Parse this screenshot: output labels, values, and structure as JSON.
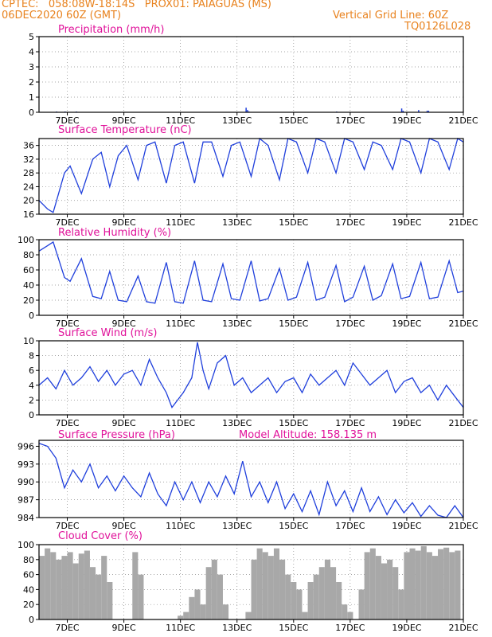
{
  "header": {
    "line1_left": "CPTEC:   058:08W-18:14S   PROX01: PAIAGUAS (MS)",
    "line2_left": "06DEC2020 60Z (GMT)",
    "line2_right": "Vertical Grid Line: 60Z",
    "line3_right": "TQ0126L028"
  },
  "colors": {
    "header": "#e8821e",
    "title": "#e0129a",
    "line": "#1f3fdc",
    "cloud": "#a8a8a8"
  },
  "chart_data": [
    {
      "type": "bar",
      "title": "Precipitation (mm/h)",
      "xlabels": [
        "7DEC",
        "9DEC",
        "11DEC",
        "13DEC",
        "15DEC",
        "17DEC",
        "19DEC",
        "21DEC"
      ],
      "ylim": [
        0,
        5
      ],
      "yticks": [
        0,
        1,
        2,
        3,
        4,
        5
      ],
      "x_days": [
        6.6,
        6.9,
        7.3,
        13.3,
        13.35,
        13.4,
        16.5,
        18.8,
        18.85,
        19.4,
        19.7,
        19.75
      ],
      "values": [
        0.05,
        0.05,
        0.05,
        0.3,
        0.15,
        0.05,
        0.05,
        0.25,
        0.1,
        0.15,
        0.1,
        0.1
      ]
    },
    {
      "type": "line",
      "title": "Surface Temperature (nC)",
      "xlabels": [
        "7DEC",
        "9DEC",
        "11DEC",
        "13DEC",
        "15DEC",
        "17DEC",
        "19DEC",
        "21DEC"
      ],
      "ylim": [
        16,
        38
      ],
      "yticks": [
        16,
        20,
        24,
        28,
        32,
        36
      ],
      "x_days": [
        6.0,
        6.3,
        6.5,
        6.9,
        7.1,
        7.5,
        7.9,
        8.2,
        8.5,
        8.8,
        9.1,
        9.5,
        9.8,
        10.1,
        10.5,
        10.8,
        11.1,
        11.5,
        11.8,
        12.1,
        12.5,
        12.8,
        13.1,
        13.5,
        13.8,
        14.1,
        14.5,
        14.8,
        15.1,
        15.5,
        15.8,
        16.1,
        16.5,
        16.8,
        17.1,
        17.5,
        17.8,
        18.1,
        18.5,
        18.8,
        19.1,
        19.5,
        19.8,
        20.1,
        20.5,
        20.8,
        21.0
      ],
      "values": [
        20,
        17.5,
        16.5,
        28,
        30,
        22,
        32,
        34,
        24,
        33,
        36,
        26,
        36,
        37,
        25,
        36,
        37,
        25,
        37,
        37,
        27,
        36,
        37,
        27,
        38,
        36,
        26,
        38,
        37,
        28,
        38,
        37,
        28,
        38,
        37,
        29,
        37,
        36,
        29,
        38,
        37,
        28,
        38,
        37,
        29,
        38,
        37
      ]
    },
    {
      "type": "line",
      "title": "Relative Humidity (%)",
      "xlabels": [
        "7DEC",
        "9DEC",
        "11DEC",
        "13DEC",
        "15DEC",
        "17DEC",
        "19DEC",
        "21DEC"
      ],
      "ylim": [
        0,
        100
      ],
      "yticks": [
        0,
        20,
        40,
        60,
        80,
        100
      ],
      "x_days": [
        6.0,
        6.3,
        6.5,
        6.9,
        7.1,
        7.5,
        7.9,
        8.2,
        8.5,
        8.8,
        9.1,
        9.5,
        9.8,
        10.1,
        10.5,
        10.8,
        11.1,
        11.5,
        11.8,
        12.1,
        12.5,
        12.8,
        13.1,
        13.5,
        13.8,
        14.1,
        14.5,
        14.8,
        15.1,
        15.5,
        15.8,
        16.1,
        16.5,
        16.8,
        17.1,
        17.5,
        17.8,
        18.1,
        18.5,
        18.8,
        19.1,
        19.5,
        19.8,
        20.1,
        20.5,
        20.8,
        21.0
      ],
      "values": [
        85,
        92,
        97,
        50,
        45,
        75,
        25,
        22,
        58,
        20,
        18,
        52,
        18,
        16,
        70,
        18,
        16,
        72,
        20,
        18,
        68,
        22,
        20,
        72,
        19,
        22,
        62,
        20,
        24,
        70,
        20,
        24,
        66,
        18,
        24,
        65,
        20,
        26,
        68,
        22,
        25,
        70,
        22,
        24,
        72,
        30,
        32
      ]
    },
    {
      "type": "line",
      "title": "Surface Wind (m/s)",
      "xlabels": [
        "7DEC",
        "9DEC",
        "11DEC",
        "13DEC",
        "15DEC",
        "17DEC",
        "19DEC",
        "21DEC"
      ],
      "ylim": [
        0,
        10
      ],
      "yticks": [
        0,
        2,
        4,
        6,
        8,
        10
      ],
      "x_days": [
        6.0,
        6.3,
        6.6,
        6.9,
        7.2,
        7.5,
        7.8,
        8.1,
        8.4,
        8.7,
        9.0,
        9.3,
        9.6,
        9.9,
        10.2,
        10.5,
        10.7,
        10.9,
        11.1,
        11.4,
        11.6,
        11.8,
        12.0,
        12.3,
        12.6,
        12.9,
        13.2,
        13.5,
        13.8,
        14.1,
        14.4,
        14.7,
        15.0,
        15.3,
        15.6,
        15.9,
        16.2,
        16.5,
        16.8,
        17.1,
        17.4,
        17.7,
        18.0,
        18.3,
        18.6,
        18.9,
        19.2,
        19.5,
        19.8,
        20.1,
        20.4,
        20.7,
        21.0
      ],
      "values": [
        4,
        5,
        3.5,
        6,
        4,
        5,
        6.5,
        4.5,
        6,
        4,
        5.5,
        6,
        4,
        7.5,
        5,
        3,
        1,
        2,
        3,
        5,
        9.8,
        6,
        3.5,
        7,
        8,
        4,
        5,
        3,
        4,
        5,
        3,
        4.5,
        5,
        3,
        5.5,
        4,
        5,
        6,
        4,
        7,
        5.5,
        4,
        5,
        6,
        3,
        4.5,
        5,
        3,
        4,
        2,
        4,
        2.5,
        1
      ]
    },
    {
      "type": "line",
      "title": "Surface Pressure (hPa)",
      "annotation": "Model Altitude: 158.135 m",
      "xlabels": [
        "7DEC",
        "9DEC",
        "11DEC",
        "13DEC",
        "15DEC",
        "17DEC",
        "19DEC",
        "21DEC"
      ],
      "ylim": [
        984,
        997
      ],
      "yticks": [
        984,
        987,
        990,
        993,
        996
      ],
      "x_days": [
        6.0,
        6.3,
        6.6,
        6.9,
        7.2,
        7.5,
        7.8,
        8.1,
        8.4,
        8.7,
        9.0,
        9.3,
        9.6,
        9.9,
        10.2,
        10.5,
        10.8,
        11.1,
        11.4,
        11.7,
        12.0,
        12.3,
        12.6,
        12.9,
        13.2,
        13.5,
        13.8,
        14.1,
        14.4,
        14.7,
        15.0,
        15.3,
        15.6,
        15.9,
        16.2,
        16.5,
        16.8,
        17.1,
        17.4,
        17.7,
        18.0,
        18.3,
        18.6,
        18.9,
        19.2,
        19.5,
        19.8,
        20.1,
        20.4,
        20.7,
        21.0
      ],
      "values": [
        996.5,
        996,
        994,
        989,
        992,
        990,
        993,
        989,
        991,
        988.5,
        991,
        989,
        987.5,
        991.5,
        988,
        986,
        990,
        987,
        990,
        986.5,
        990,
        987.5,
        991,
        988,
        993.5,
        987.5,
        990,
        986.5,
        990,
        985.5,
        988,
        985,
        988.5,
        984.5,
        990,
        986,
        988.5,
        985,
        989,
        985,
        987.5,
        984.5,
        987,
        984.8,
        986.5,
        984.2,
        986,
        984.4,
        984,
        986,
        984
      ]
    },
    {
      "type": "bar",
      "title": "Cloud Cover (%)",
      "xlabels": [
        "7DEC",
        "9DEC",
        "11DEC",
        "13DEC",
        "15DEC",
        "17DEC",
        "19DEC",
        "21DEC"
      ],
      "ylim": [
        0,
        100
      ],
      "yticks": [
        0,
        20,
        40,
        60,
        80,
        100
      ],
      "x_days": [
        6.1,
        6.3,
        6.5,
        6.7,
        6.9,
        7.1,
        7.3,
        7.5,
        7.7,
        7.9,
        8.1,
        8.3,
        8.5,
        8.7,
        9.0,
        9.2,
        9.4,
        9.6,
        9.8,
        10.0,
        10.2,
        10.4,
        10.6,
        10.8,
        11.0,
        11.2,
        11.4,
        11.6,
        11.8,
        12.0,
        12.2,
        12.4,
        12.6,
        12.8,
        13.0,
        13.2,
        13.4,
        13.6,
        13.8,
        14.0,
        14.2,
        14.4,
        14.6,
        14.8,
        15.0,
        15.2,
        15.4,
        15.6,
        15.8,
        16.0,
        16.2,
        16.4,
        16.6,
        16.8,
        17.0,
        17.2,
        17.4,
        17.6,
        17.8,
        18.0,
        18.2,
        18.4,
        18.6,
        18.8,
        19.0,
        19.2,
        19.4,
        19.6,
        19.8,
        20.0,
        20.2,
        20.4,
        20.6,
        20.8
      ],
      "values": [
        85,
        95,
        90,
        80,
        85,
        90,
        75,
        88,
        92,
        70,
        60,
        85,
        50,
        0,
        0,
        0,
        90,
        60,
        0,
        0,
        0,
        0,
        0,
        0,
        5,
        10,
        30,
        40,
        20,
        70,
        80,
        60,
        20,
        0,
        0,
        0,
        10,
        80,
        95,
        90,
        85,
        95,
        80,
        60,
        50,
        40,
        10,
        50,
        60,
        70,
        80,
        70,
        50,
        20,
        10,
        0,
        40,
        90,
        95,
        85,
        75,
        80,
        70,
        40,
        90,
        95,
        92,
        98,
        90,
        85,
        94,
        96,
        90,
        92
      ]
    }
  ]
}
